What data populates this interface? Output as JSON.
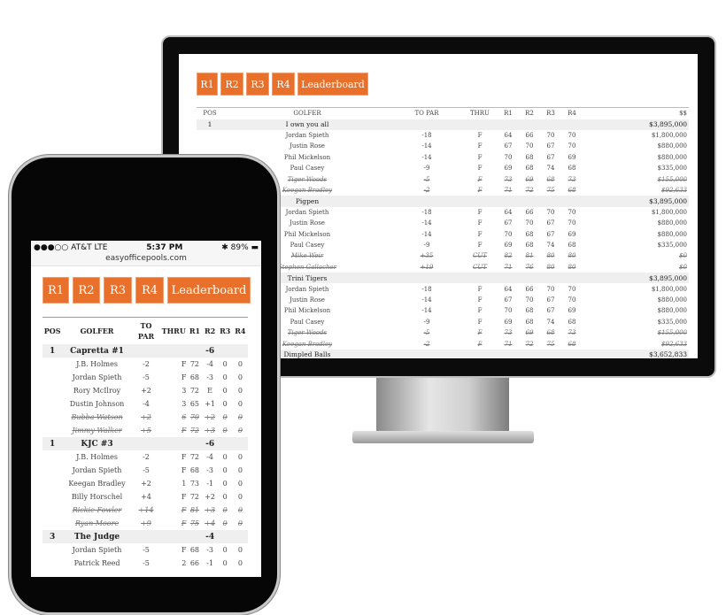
{
  "accent": "#e8702a",
  "tabs": [
    "R1",
    "R2",
    "R3",
    "R4",
    "Leaderboard"
  ],
  "desktop": {
    "headers": [
      "POS",
      "GOLFER",
      "TO PAR",
      "THRU",
      "R1",
      "R2",
      "R3",
      "R4",
      "$$"
    ],
    "rows": [
      {
        "group": true,
        "pos": "1",
        "name": "I own you all",
        "money": "$3,895,000"
      },
      {
        "name": "Jordan Spieth",
        "par": "-18",
        "thru": "F",
        "r": [
          "64",
          "66",
          "70",
          "70"
        ],
        "money": "$1,800,000"
      },
      {
        "name": "Justin Rose",
        "par": "-14",
        "thru": "F",
        "r": [
          "67",
          "70",
          "67",
          "70"
        ],
        "money": "$880,000"
      },
      {
        "name": "Phil Mickelson",
        "par": "-14",
        "thru": "F",
        "r": [
          "70",
          "68",
          "67",
          "69"
        ],
        "money": "$880,000"
      },
      {
        "name": "Paul Casey",
        "par": "-9",
        "thru": "F",
        "r": [
          "69",
          "68",
          "74",
          "68"
        ],
        "money": "$335,000"
      },
      {
        "cut": true,
        "name": "Tiger Woods",
        "par": "-5",
        "thru": "F",
        "r": [
          "73",
          "69",
          "68",
          "73"
        ],
        "money": "$155,000"
      },
      {
        "cut": true,
        "name": "Keegan Bradley",
        "par": "-2",
        "thru": "F",
        "r": [
          "71",
          "72",
          "75",
          "68"
        ],
        "money": "$92,633"
      },
      {
        "group": true,
        "pos": "",
        "name": "Pigpen",
        "money": "$3,895,000"
      },
      {
        "name": "Jordan Spieth",
        "par": "-18",
        "thru": "F",
        "r": [
          "64",
          "66",
          "70",
          "70"
        ],
        "money": "$1,800,000"
      },
      {
        "name": "Justin Rose",
        "par": "-14",
        "thru": "F",
        "r": [
          "67",
          "70",
          "67",
          "70"
        ],
        "money": "$880,000"
      },
      {
        "name": "Phil Mickelson",
        "par": "-14",
        "thru": "F",
        "r": [
          "70",
          "68",
          "67",
          "69"
        ],
        "money": "$880,000"
      },
      {
        "name": "Paul Casey",
        "par": "-9",
        "thru": "F",
        "r": [
          "69",
          "68",
          "74",
          "68"
        ],
        "money": "$335,000"
      },
      {
        "cut": true,
        "name": "Mike Weir",
        "par": "+35",
        "thru": "CUT",
        "r": [
          "82",
          "81",
          "80",
          "80"
        ],
        "money": "$0"
      },
      {
        "cut": true,
        "name": "Stephen Gallacher",
        "par": "+19",
        "thru": "CUT",
        "r": [
          "71",
          "76",
          "80",
          "80"
        ],
        "money": "$0"
      },
      {
        "group": true,
        "pos": "",
        "name": "Trini Tigers",
        "money": "$3,895,000"
      },
      {
        "name": "Jordan Spieth",
        "par": "-18",
        "thru": "F",
        "r": [
          "64",
          "66",
          "70",
          "70"
        ],
        "money": "$1,800,000"
      },
      {
        "name": "Justin Rose",
        "par": "-14",
        "thru": "F",
        "r": [
          "67",
          "70",
          "67",
          "70"
        ],
        "money": "$880,000"
      },
      {
        "name": "Phil Mickelson",
        "par": "-14",
        "thru": "F",
        "r": [
          "70",
          "68",
          "67",
          "69"
        ],
        "money": "$880,000"
      },
      {
        "name": "Paul Casey",
        "par": "-9",
        "thru": "F",
        "r": [
          "69",
          "68",
          "74",
          "68"
        ],
        "money": "$335,000"
      },
      {
        "cut": true,
        "name": "Tiger Woods",
        "par": "-5",
        "thru": "F",
        "r": [
          "73",
          "69",
          "68",
          "73"
        ],
        "money": "$155,000"
      },
      {
        "cut": true,
        "name": "Keegan Bradley",
        "par": "-2",
        "thru": "F",
        "r": [
          "71",
          "72",
          "75",
          "68"
        ],
        "money": "$92,633"
      },
      {
        "group": true,
        "pos": "",
        "name": "Dimpled Balls",
        "money": "$3,652,833"
      }
    ]
  },
  "phone": {
    "status": {
      "carrier": "●●●○○ AT&T  LTE",
      "time": "5:37 PM",
      "battery": "✱ 89% ▬"
    },
    "url": "easyofficepools.com",
    "headers": [
      "POS",
      "GOLFER",
      "TO PAR",
      "THRU",
      "R1",
      "R2",
      "R3",
      "R4"
    ],
    "rows": [
      {
        "group": true,
        "pos": "1",
        "name": "Capretta #1",
        "total": "-6"
      },
      {
        "name": "J.B. Holmes",
        "par": "-2",
        "thru": "F",
        "r": [
          "72",
          "-4",
          "0",
          "0"
        ]
      },
      {
        "name": "Jordan Spieth",
        "par": "-5",
        "thru": "F",
        "r": [
          "68",
          "-3",
          "0",
          "0"
        ]
      },
      {
        "name": "Rory McIlroy",
        "par": "+2",
        "thru": "3",
        "r": [
          "72",
          "E",
          "0",
          "0"
        ]
      },
      {
        "name": "Dustin Johnson",
        "par": "-4",
        "thru": "3",
        "r": [
          "65",
          "+1",
          "0",
          "0"
        ]
      },
      {
        "cut": true,
        "name": "Bubba Watson",
        "par": "+2",
        "thru": "6",
        "r": [
          "70",
          "+2",
          "0",
          "0"
        ]
      },
      {
        "cut": true,
        "name": "Jimmy Walker",
        "par": "+5",
        "thru": "F",
        "r": [
          "72",
          "+3",
          "0",
          "0"
        ]
      },
      {
        "group": true,
        "pos": "1",
        "name": "KJC #3",
        "total": "-6"
      },
      {
        "name": "J.B. Holmes",
        "par": "-2",
        "thru": "F",
        "r": [
          "72",
          "-4",
          "0",
          "0"
        ]
      },
      {
        "name": "Jordan Spieth",
        "par": "-5",
        "thru": "F",
        "r": [
          "68",
          "-3",
          "0",
          "0"
        ]
      },
      {
        "name": "Keegan Bradley",
        "par": "+2",
        "thru": "1",
        "r": [
          "73",
          "-1",
          "0",
          "0"
        ]
      },
      {
        "name": "Billy Horschel",
        "par": "+4",
        "thru": "F",
        "r": [
          "72",
          "+2",
          "0",
          "0"
        ]
      },
      {
        "cut": true,
        "name": "Rickie Fowler",
        "par": "+14",
        "thru": "F",
        "r": [
          "81",
          "+3",
          "0",
          "0"
        ]
      },
      {
        "cut": true,
        "name": "Ryan Moore",
        "par": "+9",
        "thru": "F",
        "r": [
          "75",
          "+4",
          "0",
          "0"
        ]
      },
      {
        "group": true,
        "pos": "3",
        "name": "The Judge",
        "total": "-4"
      },
      {
        "name": "Jordan Spieth",
        "par": "-5",
        "thru": "F",
        "r": [
          "68",
          "-3",
          "0",
          "0"
        ]
      },
      {
        "name": "Patrick Reed",
        "par": "-5",
        "thru": "2",
        "r": [
          "66",
          "-1",
          "0",
          "0"
        ]
      }
    ]
  }
}
